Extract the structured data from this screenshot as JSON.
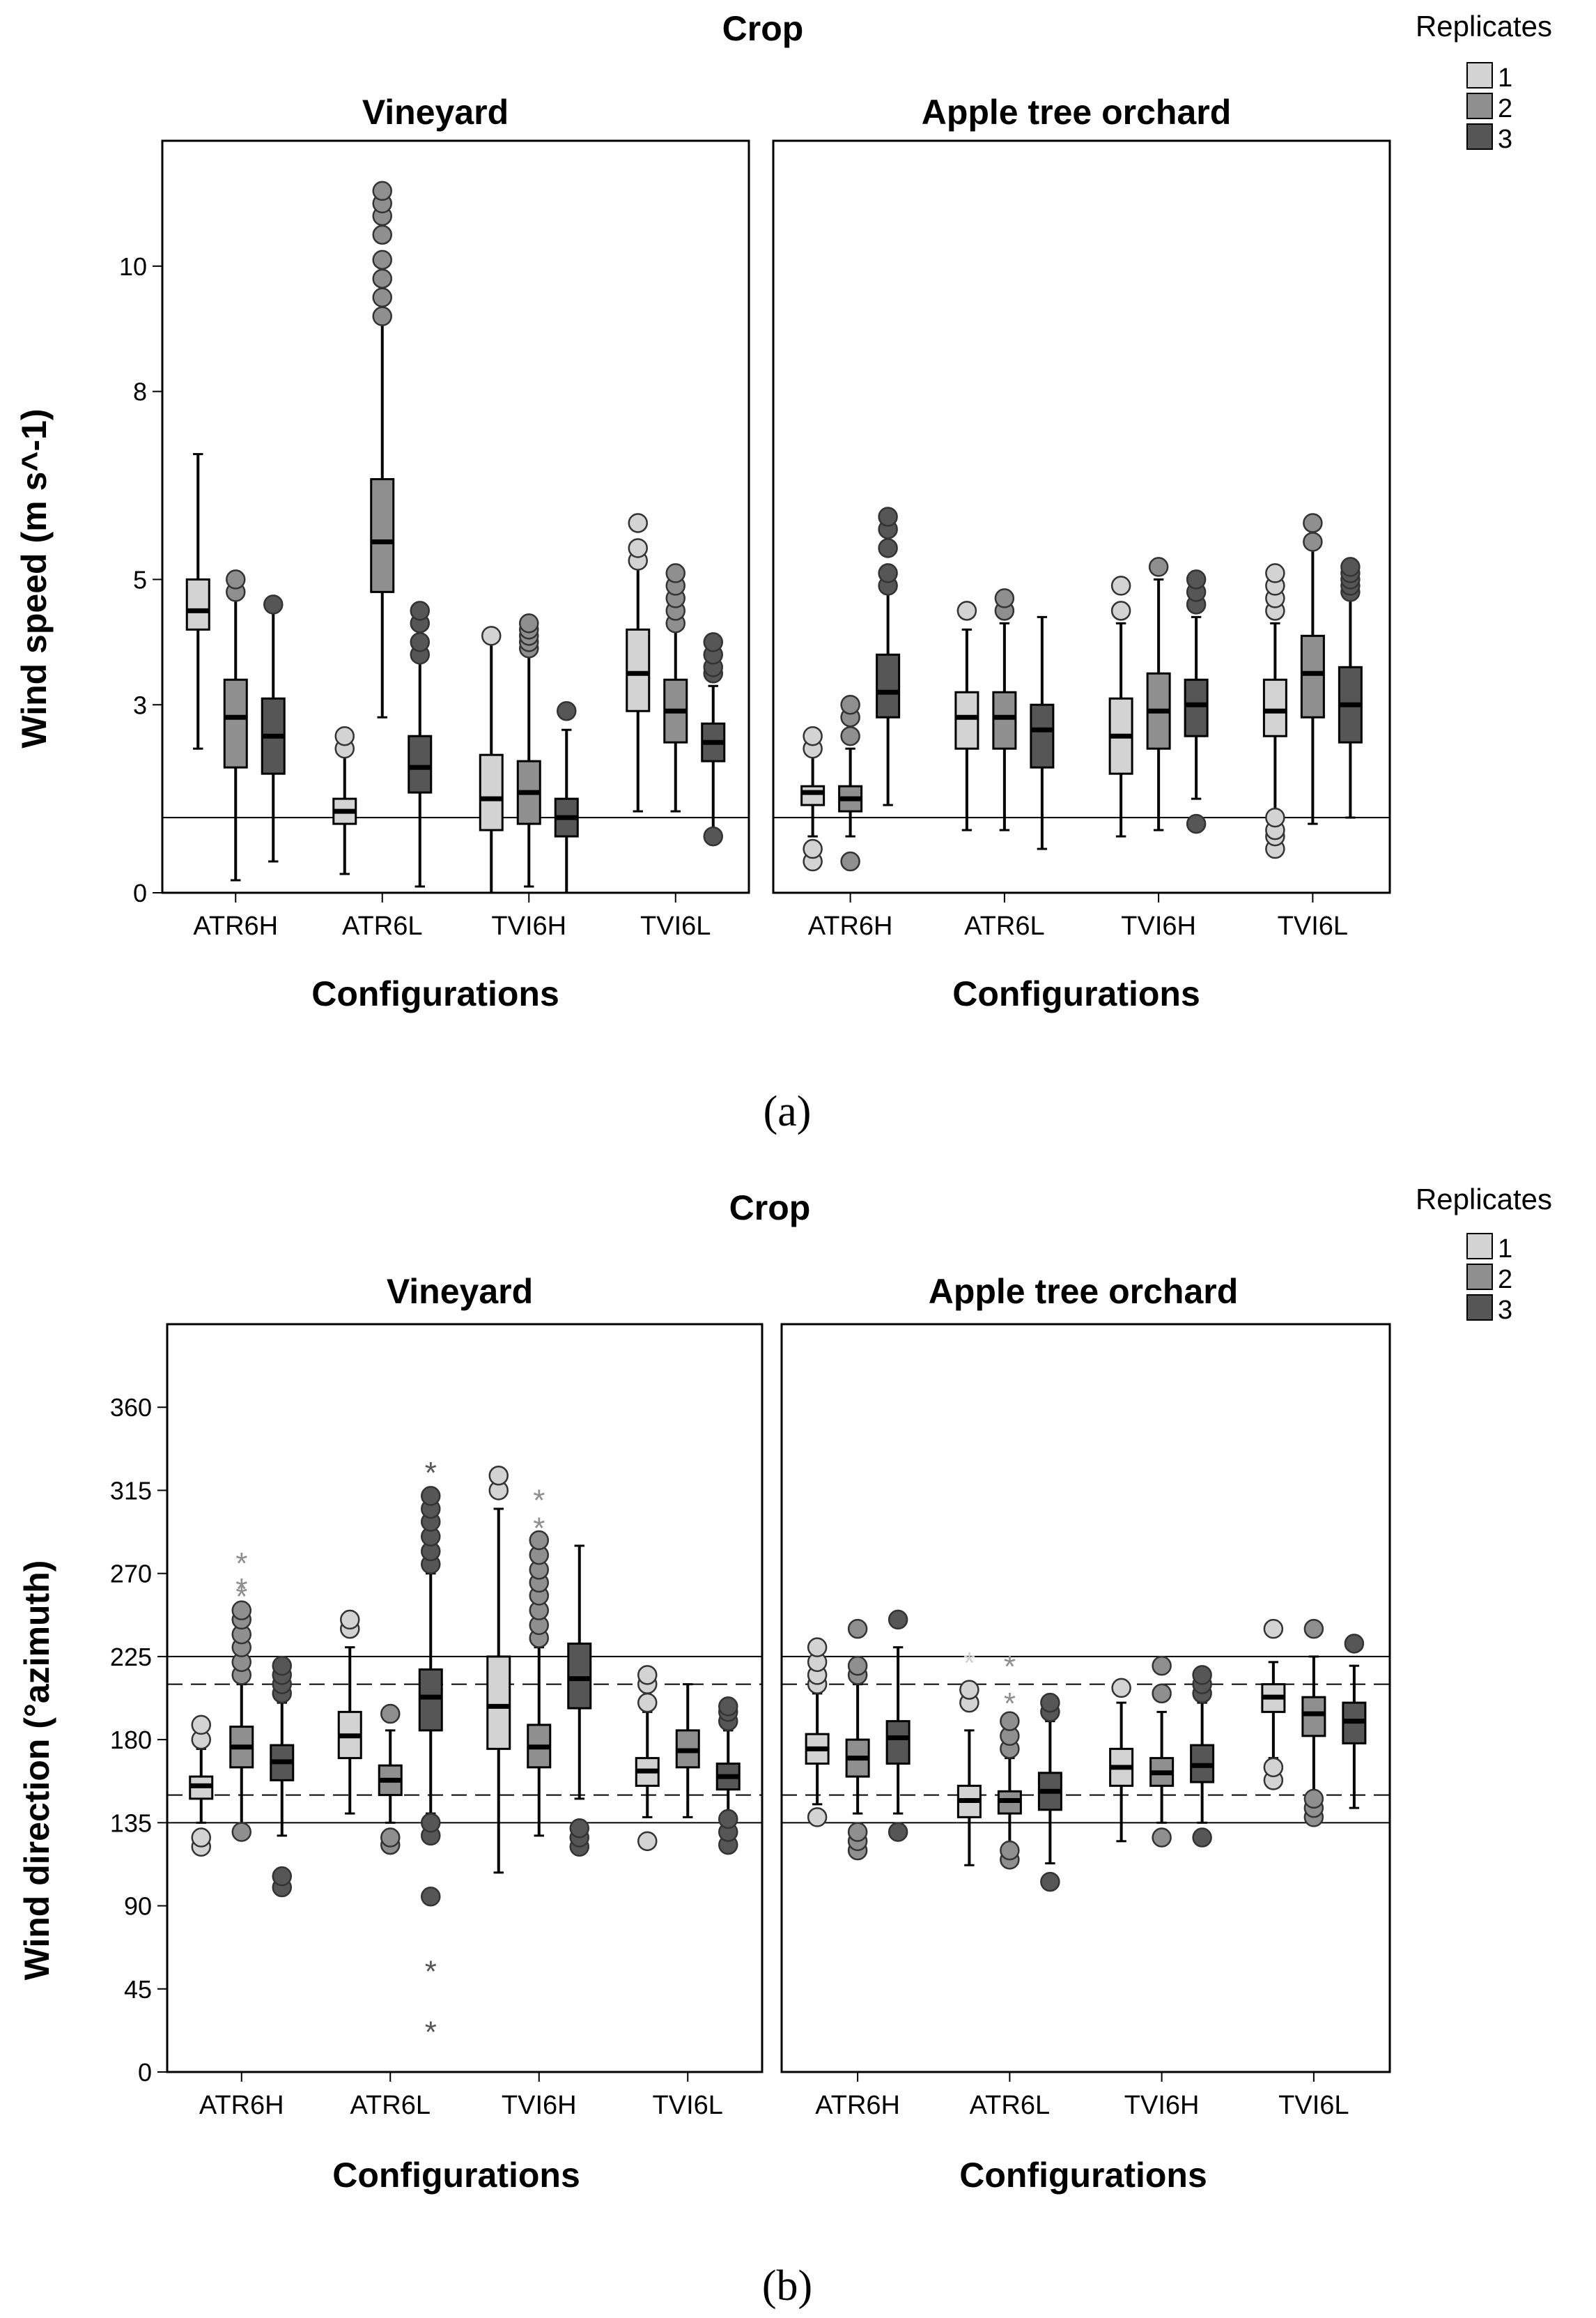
{
  "figure": {
    "panel_a_caption": "(a)",
    "panel_b_caption": "(b)",
    "legend_title": "Replicates",
    "legend_items": [
      {
        "label": "1",
        "color": "#d3d3d3"
      },
      {
        "label": "2",
        "color": "#8f8f8f"
      },
      {
        "label": "3",
        "color": "#565656"
      }
    ]
  },
  "chart_data": [
    {
      "type": "boxplot",
      "title": "Crop",
      "facets": [
        "Vineyard",
        "Apple tree orchard"
      ],
      "xlabel": "Configurations",
      "ylabel": "Wind speed (m s^-1)",
      "categories": [
        "ATR6H",
        "ATR6L",
        "TVI6H",
        "TVI6L"
      ],
      "series_names": [
        "1",
        "2",
        "3"
      ],
      "ylim": [
        0,
        12
      ],
      "yticks": [
        0,
        3,
        5,
        8,
        10
      ],
      "ref_lines": [
        {
          "value": 1.2,
          "style": "solid"
        }
      ],
      "boxes": [
        {
          "facet": 0,
          "cat": 0,
          "rep": 1,
          "min": 2.3,
          "q1": 4.2,
          "med": 4.5,
          "q3": 5.0,
          "max": 7.0,
          "outliers": [],
          "stars": []
        },
        {
          "facet": 0,
          "cat": 0,
          "rep": 2,
          "min": 0.2,
          "q1": 2.0,
          "med": 2.8,
          "q3": 3.4,
          "max": 5.0,
          "outliers": [
            4.8,
            5.0
          ],
          "stars": []
        },
        {
          "facet": 0,
          "cat": 0,
          "rep": 3,
          "min": 0.5,
          "q1": 1.9,
          "med": 2.5,
          "q3": 3.1,
          "max": 4.5,
          "outliers": [
            4.6
          ],
          "stars": []
        },
        {
          "facet": 0,
          "cat": 1,
          "rep": 1,
          "min": 0.3,
          "q1": 1.1,
          "med": 1.3,
          "q3": 1.5,
          "max": 2.3,
          "outliers": [
            2.3,
            2.5
          ],
          "stars": []
        },
        {
          "facet": 0,
          "cat": 1,
          "rep": 2,
          "min": 2.8,
          "q1": 4.8,
          "med": 5.6,
          "q3": 6.6,
          "max": 10.0,
          "outliers": [
            9.2,
            9.5,
            9.8,
            10.1,
            10.5,
            10.8,
            11.0,
            11.2
          ],
          "stars": []
        },
        {
          "facet": 0,
          "cat": 1,
          "rep": 3,
          "min": 0.1,
          "q1": 1.6,
          "med": 2.0,
          "q3": 2.5,
          "max": 3.7,
          "outliers": [
            3.8,
            4.0,
            4.3,
            4.5
          ],
          "stars": []
        },
        {
          "facet": 0,
          "cat": 2,
          "rep": 1,
          "min": 0.0,
          "q1": 1.0,
          "med": 1.5,
          "q3": 2.2,
          "max": 4.0,
          "outliers": [
            4.1
          ],
          "stars": []
        },
        {
          "facet": 0,
          "cat": 2,
          "rep": 2,
          "min": 0.1,
          "q1": 1.1,
          "med": 1.6,
          "q3": 2.1,
          "max": 3.9,
          "outliers": [
            3.9,
            4.0,
            4.1,
            4.2,
            4.3
          ],
          "stars": []
        },
        {
          "facet": 0,
          "cat": 2,
          "rep": 3,
          "min": 0.0,
          "q1": 0.9,
          "med": 1.2,
          "q3": 1.5,
          "max": 2.6,
          "outliers": [
            2.9
          ],
          "stars": []
        },
        {
          "facet": 0,
          "cat": 3,
          "rep": 1,
          "min": 1.3,
          "q1": 2.9,
          "med": 3.5,
          "q3": 4.2,
          "max": 5.3,
          "outliers": [
            5.3,
            5.5,
            5.9
          ],
          "stars": []
        },
        {
          "facet": 0,
          "cat": 3,
          "rep": 2,
          "min": 1.3,
          "q1": 2.4,
          "med": 2.9,
          "q3": 3.4,
          "max": 4.2,
          "outliers": [
            4.3,
            4.5,
            4.7,
            4.9,
            5.1
          ],
          "stars": []
        },
        {
          "facet": 0,
          "cat": 3,
          "rep": 3,
          "min": 0.9,
          "q1": 2.1,
          "med": 2.4,
          "q3": 2.7,
          "max": 3.3,
          "outliers": [
            0.9,
            3.5,
            3.6,
            3.8,
            4.0
          ],
          "stars": []
        },
        {
          "facet": 1,
          "cat": 0,
          "rep": 1,
          "min": 0.9,
          "q1": 1.4,
          "med": 1.6,
          "q3": 1.7,
          "max": 2.3,
          "outliers": [
            0.5,
            0.7,
            2.3,
            2.5
          ],
          "stars": []
        },
        {
          "facet": 1,
          "cat": 0,
          "rep": 2,
          "min": 0.9,
          "q1": 1.3,
          "med": 1.5,
          "q3": 1.7,
          "max": 2.3,
          "outliers": [
            0.5,
            2.5,
            2.8,
            3.0
          ],
          "stars": []
        },
        {
          "facet": 1,
          "cat": 0,
          "rep": 3,
          "min": 1.4,
          "q1": 2.8,
          "med": 3.2,
          "q3": 3.8,
          "max": 4.8,
          "outliers": [
            4.9,
            5.1,
            5.5,
            5.8,
            6.0
          ],
          "stars": []
        },
        {
          "facet": 1,
          "cat": 1,
          "rep": 1,
          "min": 1.0,
          "q1": 2.3,
          "med": 2.8,
          "q3": 3.2,
          "max": 4.2,
          "outliers": [
            4.5
          ],
          "stars": []
        },
        {
          "facet": 1,
          "cat": 1,
          "rep": 2,
          "min": 1.0,
          "q1": 2.3,
          "med": 2.8,
          "q3": 3.2,
          "max": 4.3,
          "outliers": [
            4.5,
            4.7
          ],
          "stars": []
        },
        {
          "facet": 1,
          "cat": 1,
          "rep": 3,
          "min": 0.7,
          "q1": 2.0,
          "med": 2.6,
          "q3": 3.0,
          "max": 4.4,
          "outliers": [],
          "stars": []
        },
        {
          "facet": 1,
          "cat": 2,
          "rep": 1,
          "min": 0.9,
          "q1": 1.9,
          "med": 2.5,
          "q3": 3.1,
          "max": 4.3,
          "outliers": [
            4.5,
            4.9
          ],
          "stars": []
        },
        {
          "facet": 1,
          "cat": 2,
          "rep": 2,
          "min": 1.0,
          "q1": 2.3,
          "med": 2.9,
          "q3": 3.5,
          "max": 5.0,
          "outliers": [
            5.2
          ],
          "stars": []
        },
        {
          "facet": 1,
          "cat": 2,
          "rep": 3,
          "min": 1.5,
          "q1": 2.5,
          "med": 3.0,
          "q3": 3.4,
          "max": 4.4,
          "outliers": [
            1.1,
            4.6,
            4.8,
            5.0
          ],
          "stars": []
        },
        {
          "facet": 1,
          "cat": 3,
          "rep": 1,
          "min": 1.3,
          "q1": 2.5,
          "med": 2.9,
          "q3": 3.4,
          "max": 4.3,
          "outliers": [
            0.7,
            0.9,
            1.0,
            1.2,
            4.5,
            4.7,
            4.9,
            5.1
          ],
          "stars": []
        },
        {
          "facet": 1,
          "cat": 3,
          "rep": 2,
          "min": 1.1,
          "q1": 2.8,
          "med": 3.5,
          "q3": 4.1,
          "max": 5.5,
          "outliers": [
            5.6,
            5.9
          ],
          "stars": []
        },
        {
          "facet": 1,
          "cat": 3,
          "rep": 3,
          "min": 1.2,
          "q1": 2.4,
          "med": 3.0,
          "q3": 3.6,
          "max": 4.7,
          "outliers": [
            4.8,
            4.9,
            5.0,
            5.1,
            5.2
          ],
          "stars": []
        }
      ]
    },
    {
      "type": "boxplot",
      "title": "Crop",
      "facets": [
        "Vineyard",
        "Apple tree orchard"
      ],
      "xlabel": "Configurations",
      "ylabel": "Wind direction (°azimuth)",
      "categories": [
        "ATR6H",
        "ATR6L",
        "TVI6H",
        "TVI6L"
      ],
      "series_names": [
        "1",
        "2",
        "3"
      ],
      "ylim": [
        0,
        405
      ],
      "yticks": [
        0,
        45,
        90,
        135,
        180,
        225,
        270,
        315,
        360
      ],
      "ref_lines": [
        {
          "value": 135,
          "style": "solid"
        },
        {
          "value": 150,
          "style": "dashed"
        },
        {
          "value": 210,
          "style": "dashed"
        },
        {
          "value": 225,
          "style": "solid"
        }
      ],
      "boxes": [
        {
          "facet": 0,
          "cat": 0,
          "rep": 1,
          "min": 135,
          "q1": 148,
          "med": 155,
          "q3": 160,
          "max": 175,
          "outliers": [
            122,
            127,
            180,
            188
          ],
          "stars": []
        },
        {
          "facet": 0,
          "cat": 0,
          "rep": 2,
          "min": 130,
          "q1": 165,
          "med": 176,
          "q3": 187,
          "max": 210,
          "outliers": [
            130,
            215,
            222,
            230,
            237,
            245,
            250
          ],
          "stars": [
            258,
            262,
            276
          ]
        },
        {
          "facet": 0,
          "cat": 0,
          "rep": 3,
          "min": 128,
          "q1": 158,
          "med": 168,
          "q3": 177,
          "max": 200,
          "outliers": [
            100,
            106,
            205,
            210,
            215,
            220
          ],
          "stars": []
        },
        {
          "facet": 0,
          "cat": 1,
          "rep": 1,
          "min": 140,
          "q1": 170,
          "med": 182,
          "q3": 195,
          "max": 230,
          "outliers": [
            240,
            245
          ],
          "stars": []
        },
        {
          "facet": 0,
          "cat": 1,
          "rep": 2,
          "min": 135,
          "q1": 150,
          "med": 158,
          "q3": 166,
          "max": 185,
          "outliers": [
            123,
            127,
            194
          ],
          "stars": []
        },
        {
          "facet": 0,
          "cat": 1,
          "rep": 3,
          "min": 140,
          "q1": 185,
          "med": 203,
          "q3": 218,
          "max": 270,
          "outliers": [
            95,
            128,
            135,
            275,
            282,
            290,
            298,
            305,
            312
          ],
          "stars": [
            22,
            55,
            325
          ]
        },
        {
          "facet": 0,
          "cat": 2,
          "rep": 1,
          "min": 108,
          "q1": 175,
          "med": 198,
          "q3": 225,
          "max": 305,
          "outliers": [
            315,
            323
          ],
          "stars": []
        },
        {
          "facet": 0,
          "cat": 2,
          "rep": 2,
          "min": 128,
          "q1": 165,
          "med": 176,
          "q3": 188,
          "max": 230,
          "outliers": [
            235,
            242,
            250,
            258,
            265,
            272,
            280,
            288
          ],
          "stars": [
            295,
            310
          ]
        },
        {
          "facet": 0,
          "cat": 2,
          "rep": 3,
          "min": 148,
          "q1": 197,
          "med": 213,
          "q3": 232,
          "max": 285,
          "outliers": [
            122,
            127,
            132
          ],
          "stars": []
        },
        {
          "facet": 0,
          "cat": 3,
          "rep": 1,
          "min": 138,
          "q1": 155,
          "med": 163,
          "q3": 170,
          "max": 195,
          "outliers": [
            125,
            200,
            210,
            215
          ],
          "stars": []
        },
        {
          "facet": 0,
          "cat": 3,
          "rep": 2,
          "min": 138,
          "q1": 165,
          "med": 174,
          "q3": 185,
          "max": 210,
          "outliers": [],
          "stars": []
        },
        {
          "facet": 0,
          "cat": 3,
          "rep": 3,
          "min": 140,
          "q1": 153,
          "med": 160,
          "q3": 167,
          "max": 185,
          "outliers": [
            123,
            130,
            137,
            190,
            195,
            198
          ],
          "stars": []
        },
        {
          "facet": 1,
          "cat": 0,
          "rep": 1,
          "min": 145,
          "q1": 167,
          "med": 175,
          "q3": 183,
          "max": 205,
          "outliers": [
            138,
            210,
            215,
            222,
            230
          ],
          "stars": []
        },
        {
          "facet": 1,
          "cat": 0,
          "rep": 2,
          "min": 140,
          "q1": 160,
          "med": 170,
          "q3": 180,
          "max": 210,
          "outliers": [
            120,
            125,
            130,
            215,
            220,
            240
          ],
          "stars": []
        },
        {
          "facet": 1,
          "cat": 0,
          "rep": 3,
          "min": 140,
          "q1": 167,
          "med": 181,
          "q3": 190,
          "max": 230,
          "outliers": [
            130,
            245
          ],
          "stars": []
        },
        {
          "facet": 1,
          "cat": 1,
          "rep": 1,
          "min": 112,
          "q1": 138,
          "med": 147,
          "q3": 155,
          "max": 185,
          "outliers": [
            200,
            207
          ],
          "stars": [
            222
          ]
        },
        {
          "facet": 1,
          "cat": 1,
          "rep": 2,
          "min": 118,
          "q1": 140,
          "med": 147,
          "q3": 152,
          "max": 170,
          "outliers": [
            115,
            120,
            175,
            182,
            190
          ],
          "stars": [
            200,
            220
          ]
        },
        {
          "facet": 1,
          "cat": 1,
          "rep": 3,
          "min": 113,
          "q1": 142,
          "med": 152,
          "q3": 162,
          "max": 190,
          "outliers": [
            103,
            195,
            200
          ],
          "stars": []
        },
        {
          "facet": 1,
          "cat": 2,
          "rep": 1,
          "min": 125,
          "q1": 155,
          "med": 165,
          "q3": 175,
          "max": 200,
          "outliers": [
            208
          ],
          "stars": []
        },
        {
          "facet": 1,
          "cat": 2,
          "rep": 2,
          "min": 135,
          "q1": 155,
          "med": 162,
          "q3": 170,
          "max": 195,
          "outliers": [
            127,
            205,
            220
          ],
          "stars": []
        },
        {
          "facet": 1,
          "cat": 2,
          "rep": 3,
          "min": 135,
          "q1": 157,
          "med": 166,
          "q3": 177,
          "max": 200,
          "outliers": [
            127,
            205,
            210,
            215
          ],
          "stars": []
        },
        {
          "facet": 1,
          "cat": 3,
          "rep": 1,
          "min": 170,
          "q1": 195,
          "med": 203,
          "q3": 210,
          "max": 222,
          "outliers": [
            158,
            165,
            240
          ],
          "stars": []
        },
        {
          "facet": 1,
          "cat": 3,
          "rep": 2,
          "min": 150,
          "q1": 182,
          "med": 194,
          "q3": 203,
          "max": 225,
          "outliers": [
            138,
            143,
            148,
            240
          ],
          "stars": []
        },
        {
          "facet": 1,
          "cat": 3,
          "rep": 3,
          "min": 143,
          "q1": 178,
          "med": 190,
          "q3": 200,
          "max": 220,
          "outliers": [
            232
          ],
          "stars": []
        }
      ]
    }
  ]
}
